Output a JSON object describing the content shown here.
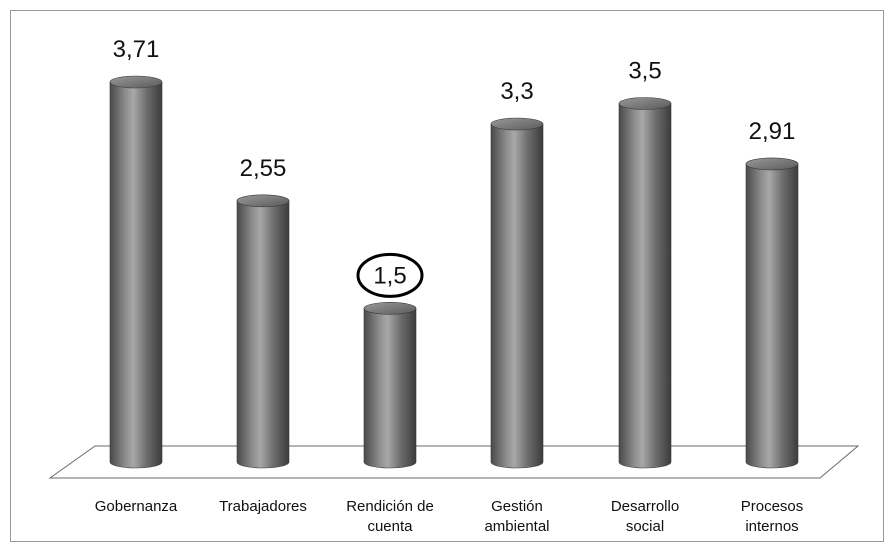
{
  "chart_data": {
    "type": "bar",
    "style": "3d-cylinder",
    "categories": [
      [
        "Gobernanza"
      ],
      [
        "Trabajadores"
      ],
      [
        "Rendición de",
        "cuenta"
      ],
      [
        "Gestión",
        "ambiental"
      ],
      [
        "Desarrollo",
        "social"
      ],
      [
        "Procesos",
        "internos"
      ]
    ],
    "values": [
      3.71,
      2.55,
      1.5,
      3.3,
      3.5,
      2.91
    ],
    "value_labels": [
      "3,71",
      "2,55",
      "1,5",
      "3,3",
      "3,5",
      "2,91"
    ],
    "highlighted_index": 2,
    "ylim": [
      0,
      4
    ],
    "grid": false,
    "colors": {
      "bar": "#7a7a7a",
      "bar_highlight": "#c9c9c9",
      "bar_shadow": "#3f3f3f",
      "floor": "#ffffff",
      "border": "#9a9a9a"
    }
  }
}
